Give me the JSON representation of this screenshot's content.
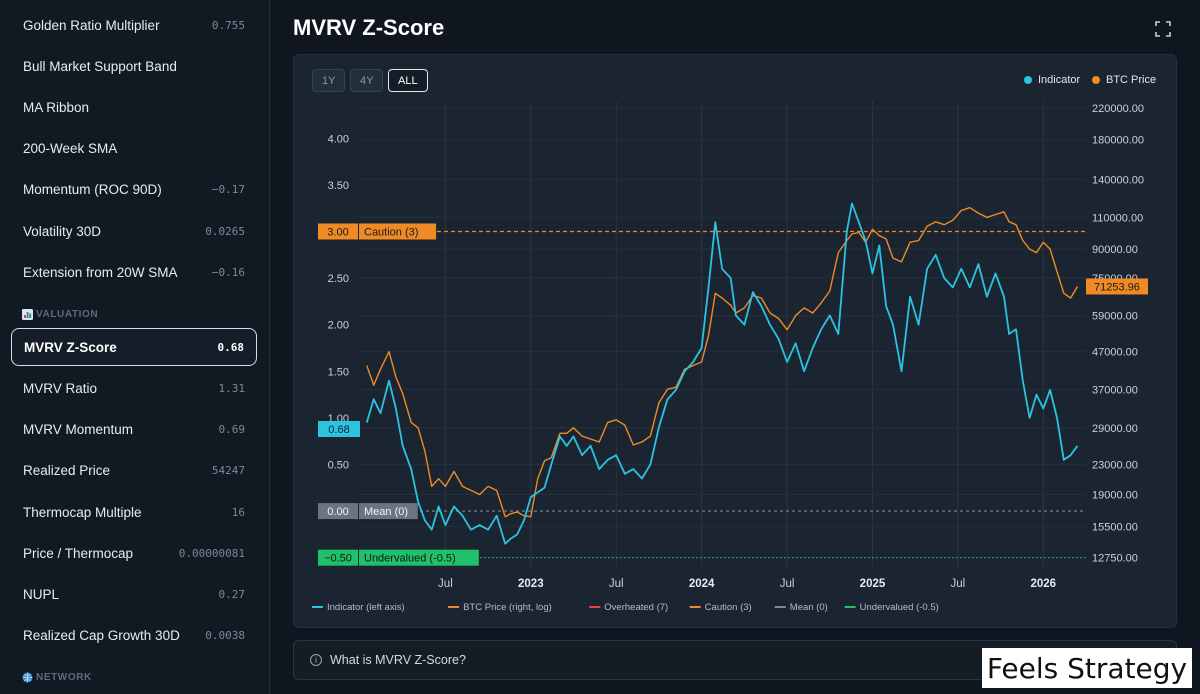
{
  "sidebar": {
    "items_top": [
      {
        "label": "Golden Ratio Multiplier",
        "value": "0.755"
      },
      {
        "label": "Bull Market Support Band",
        "value": ""
      },
      {
        "label": "MA Ribbon",
        "value": ""
      },
      {
        "label": "200-Week SMA",
        "value": ""
      },
      {
        "label": "Momentum (ROC 90D)",
        "value": "−0.17"
      },
      {
        "label": "Volatility 30D",
        "value": "0.0265"
      },
      {
        "label": "Extension from 20W SMA",
        "value": "−0.16"
      }
    ],
    "valuation_heading": "VALUATION",
    "valuation_items": [
      {
        "label": "MVRV Z-Score",
        "value": "0.68"
      },
      {
        "label": "MVRV Ratio",
        "value": "1.31"
      },
      {
        "label": "MVRV Momentum",
        "value": "0.69"
      },
      {
        "label": "Realized Price",
        "value": "54247"
      },
      {
        "label": "Thermocap Multiple",
        "value": "16"
      },
      {
        "label": "Price / Thermocap",
        "value": "0.00000081"
      },
      {
        "label": "NUPL",
        "value": "0.27"
      },
      {
        "label": "Realized Cap Growth 30D",
        "value": "0.0038"
      }
    ],
    "network_heading": "NETWORK"
  },
  "main": {
    "title": "MVRV Z-Score",
    "ranges": [
      "1Y",
      "4Y",
      "ALL"
    ],
    "active_range": "ALL",
    "about_label": "What is MVRV Z-Score?"
  },
  "watermark": "Feels Strategy",
  "colors": {
    "indicator": "#2ac3e0",
    "btc": "#f08a24",
    "overheated": "#e0474c",
    "caution": "#f08a24",
    "mean": "#7f8894",
    "undervalued": "#21c16b"
  },
  "chart_data": {
    "type": "line",
    "x_ticks": [
      "Jul",
      "2023",
      "Jul",
      "2024",
      "Jul",
      "2025",
      "Jul",
      "2026"
    ],
    "y_left_ticks": [
      "4.00",
      "3.50",
      "2.50",
      "2.00",
      "1.50",
      "1.00",
      "0.50"
    ],
    "y_right_ticks": [
      "220000.00",
      "180000.00",
      "140000.00",
      "110000.00",
      "90000.00",
      "75000.00",
      "59000.00",
      "47000.00",
      "37000.00",
      "29000.00",
      "23000.00",
      "19000.00",
      "15500.00",
      "12750.00"
    ],
    "y_left_range": [
      -0.6,
      4.4
    ],
    "y_right_range": [
      12000,
      230000
    ],
    "y_right_scale": "log",
    "legend_top": [
      "Indicator",
      "BTC Price"
    ],
    "legend_bottom": [
      "Indicator (left axis)",
      "BTC Price (right, log)",
      "Overheated (7)",
      "Caution (3)",
      "Mean (0)",
      "Undervalued (-0.5)"
    ],
    "thresholds": [
      {
        "name": "Caution (3)",
        "value": 3.0,
        "value_label": "3.00"
      },
      {
        "name": "Mean (0)",
        "value": 0.0,
        "value_label": "0.00"
      },
      {
        "name": "Undervalued (-0.5)",
        "value": -0.5,
        "value_label": "−0.50"
      }
    ],
    "current_indicator_label": "0.68",
    "current_price_label": "71253.96",
    "series": [
      {
        "name": "Indicator",
        "x": [
          2022.04,
          2022.08,
          2022.12,
          2022.17,
          2022.21,
          2022.25,
          2022.3,
          2022.34,
          2022.38,
          2022.42,
          2022.46,
          2022.5,
          2022.55,
          2022.6,
          2022.65,
          2022.7,
          2022.75,
          2022.8,
          2022.85,
          2022.88,
          2022.92,
          2022.96,
          2023.0,
          2023.04,
          2023.08,
          2023.12,
          2023.17,
          2023.21,
          2023.25,
          2023.3,
          2023.35,
          2023.4,
          2023.45,
          2023.5,
          2023.55,
          2023.6,
          2023.65,
          2023.7,
          2023.75,
          2023.8,
          2023.85,
          2023.9,
          2023.95,
          2024.0,
          2024.04,
          2024.08,
          2024.12,
          2024.17,
          2024.2,
          2024.25,
          2024.3,
          2024.35,
          2024.4,
          2024.45,
          2024.5,
          2024.55,
          2024.6,
          2024.65,
          2024.7,
          2024.75,
          2024.8,
          2024.85,
          2024.88,
          2024.92,
          2024.96,
          2025.0,
          2025.04,
          2025.08,
          2025.12,
          2025.17,
          2025.22,
          2025.27,
          2025.32,
          2025.37,
          2025.42,
          2025.47,
          2025.52,
          2025.57,
          2025.62,
          2025.67,
          2025.72,
          2025.77,
          2025.8,
          2025.84,
          2025.88,
          2025.92,
          2025.96,
          2026.0,
          2026.04,
          2026.08,
          2026.12,
          2026.16,
          2026.2
        ],
        "y": [
          0.95,
          1.2,
          1.05,
          1.4,
          1.1,
          0.7,
          0.45,
          0.1,
          -0.1,
          -0.2,
          0.05,
          -0.15,
          0.05,
          -0.05,
          -0.2,
          -0.15,
          -0.2,
          -0.05,
          -0.35,
          -0.3,
          -0.25,
          -0.1,
          0.15,
          0.2,
          0.25,
          0.5,
          0.8,
          0.7,
          0.8,
          0.6,
          0.7,
          0.45,
          0.55,
          0.6,
          0.4,
          0.45,
          0.35,
          0.5,
          0.9,
          1.2,
          1.3,
          1.5,
          1.6,
          1.75,
          2.4,
          3.1,
          2.6,
          2.5,
          2.1,
          2.0,
          2.35,
          2.2,
          2.0,
          1.85,
          1.6,
          1.8,
          1.5,
          1.75,
          1.95,
          2.1,
          1.9,
          3.0,
          3.3,
          3.1,
          2.9,
          2.55,
          2.85,
          2.2,
          2.0,
          1.5,
          2.3,
          2.0,
          2.6,
          2.75,
          2.5,
          2.4,
          2.6,
          2.4,
          2.65,
          2.3,
          2.55,
          2.3,
          1.9,
          1.95,
          1.4,
          1.0,
          1.25,
          1.1,
          1.3,
          1.0,
          0.55,
          0.6,
          0.7
        ]
      },
      {
        "name": "BTC Price",
        "x": [
          2022.04,
          2022.08,
          2022.12,
          2022.17,
          2022.21,
          2022.25,
          2022.3,
          2022.34,
          2022.38,
          2022.42,
          2022.46,
          2022.5,
          2022.55,
          2022.6,
          2022.65,
          2022.7,
          2022.75,
          2022.8,
          2022.85,
          2022.88,
          2022.92,
          2022.96,
          2023.0,
          2023.04,
          2023.08,
          2023.12,
          2023.17,
          2023.21,
          2023.25,
          2023.3,
          2023.35,
          2023.4,
          2023.45,
          2023.5,
          2023.55,
          2023.6,
          2023.65,
          2023.7,
          2023.75,
          2023.8,
          2023.85,
          2023.9,
          2023.95,
          2024.0,
          2024.04,
          2024.08,
          2024.12,
          2024.17,
          2024.2,
          2024.25,
          2024.3,
          2024.35,
          2024.4,
          2024.45,
          2024.5,
          2024.55,
          2024.6,
          2024.65,
          2024.7,
          2024.75,
          2024.8,
          2024.85,
          2024.88,
          2024.92,
          2024.96,
          2025.0,
          2025.04,
          2025.08,
          2025.12,
          2025.17,
          2025.22,
          2025.27,
          2025.32,
          2025.37,
          2025.42,
          2025.47,
          2025.52,
          2025.57,
          2025.62,
          2025.67,
          2025.72,
          2025.77,
          2025.8,
          2025.84,
          2025.88,
          2025.92,
          2025.96,
          2026.0,
          2026.04,
          2026.08,
          2026.12,
          2026.16,
          2026.2
        ],
        "y": [
          43000,
          38000,
          42000,
          47000,
          40000,
          36000,
          30000,
          29000,
          25000,
          20000,
          21000,
          20000,
          22000,
          20000,
          19500,
          19000,
          20000,
          19500,
          16500,
          16800,
          17000,
          16600,
          16500,
          21000,
          23500,
          24000,
          28000,
          28000,
          29000,
          27500,
          27000,
          26500,
          30000,
          30500,
          29500,
          26000,
          26500,
          27500,
          34000,
          37000,
          37500,
          42000,
          43000,
          44000,
          52000,
          68000,
          66000,
          63000,
          60000,
          62000,
          67000,
          66000,
          60000,
          58000,
          54000,
          59000,
          62000,
          60000,
          64000,
          69000,
          88000,
          95000,
          99000,
          100000,
          94000,
          102000,
          98000,
          96000,
          85000,
          83000,
          94000,
          95000,
          104000,
          107000,
          105000,
          108000,
          115000,
          117000,
          113000,
          110000,
          112000,
          114000,
          107000,
          105000,
          95000,
          90000,
          88000,
          94000,
          90000,
          78000,
          68000,
          66000,
          71000
        ]
      }
    ]
  }
}
